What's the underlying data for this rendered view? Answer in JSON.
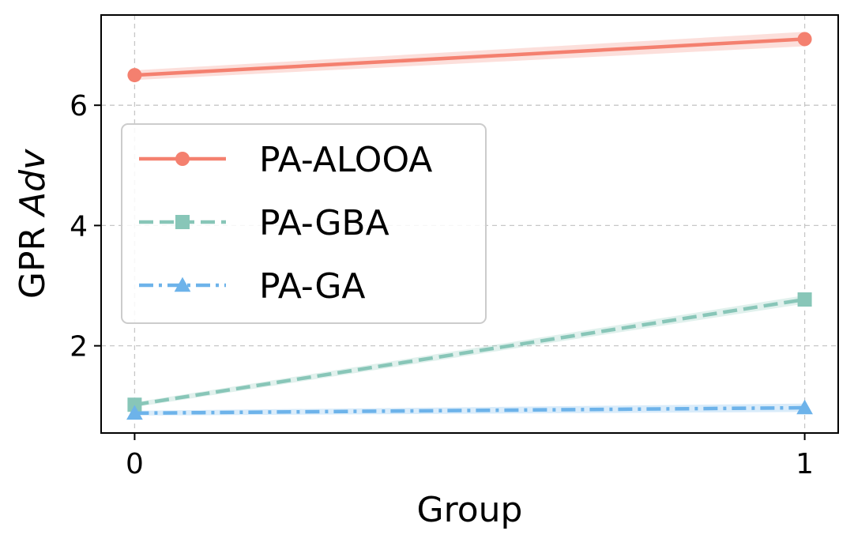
{
  "chart_data": {
    "type": "line",
    "title": "",
    "xlabel": "Group",
    "ylabel_prefix": "GPR ",
    "ylabel_italic": "Adv",
    "x": [
      0,
      1
    ],
    "x_tick_labels": [
      "0",
      "1"
    ],
    "xlim": [
      -0.05,
      1.05
    ],
    "y_ticks": [
      2,
      4,
      6
    ],
    "y_tick_labels": [
      "2",
      "4",
      "6"
    ],
    "ylim": [
      0.55,
      7.5
    ],
    "grid": true,
    "legend_position": "center-left",
    "series": [
      {
        "name": "PA-ALOOA",
        "values": [
          6.5,
          7.1
        ],
        "color": "#f4806f",
        "marker": "circle",
        "linestyle": "solid",
        "band": [
          0.08,
          0.12
        ]
      },
      {
        "name": "PA-GBA",
        "values": [
          1.02,
          2.77
        ],
        "color": "#88c6b8",
        "marker": "square",
        "linestyle": "dashed",
        "band": [
          0.04,
          0.07
        ]
      },
      {
        "name": "PA-GA",
        "values": [
          0.88,
          0.97
        ],
        "color": "#6db3ea",
        "marker": "triangle",
        "linestyle": "dashdot",
        "band": [
          0.04,
          0.07
        ]
      }
    ]
  }
}
